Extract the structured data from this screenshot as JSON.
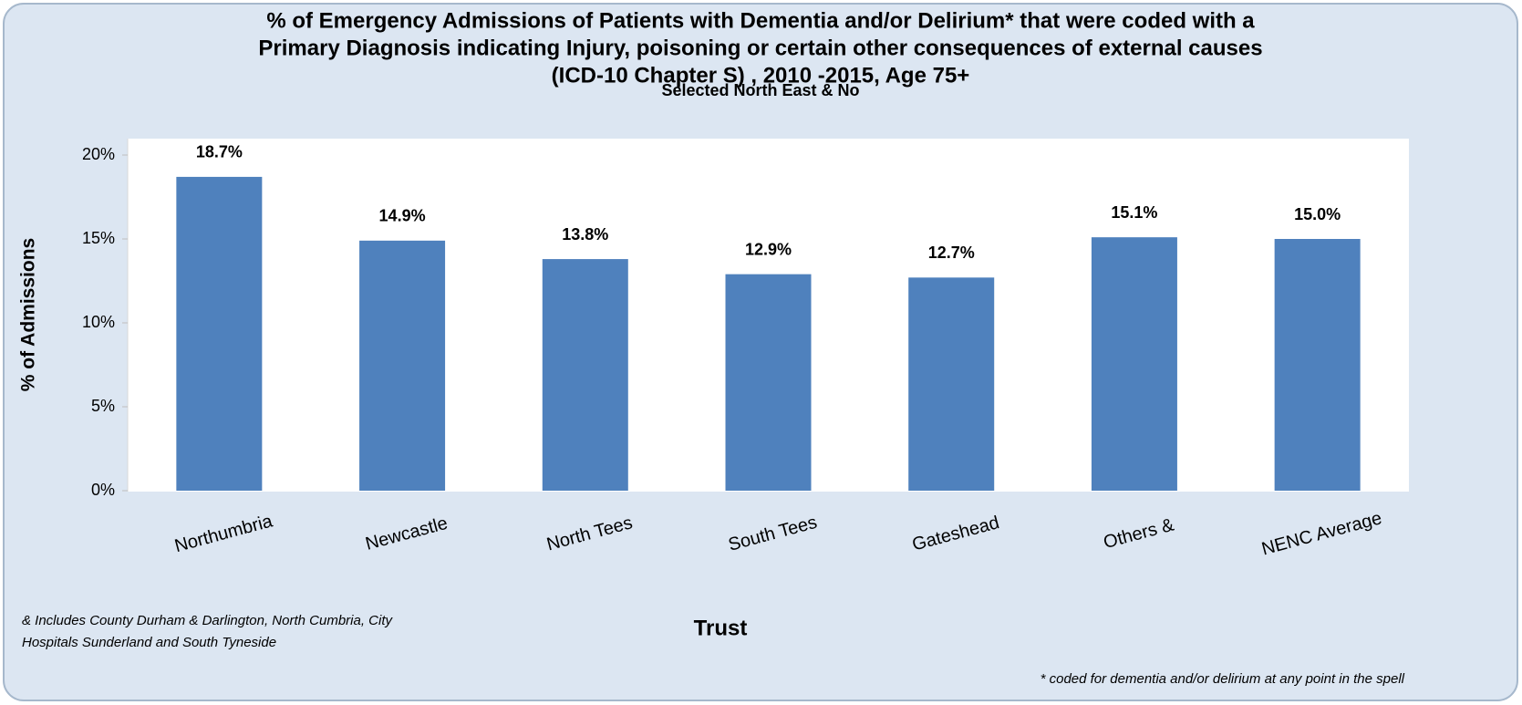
{
  "chart_data": {
    "type": "bar",
    "title": [
      "% of Emergency Admissions of Patients with Dementia and/or Delirium* that were coded with a",
      "Primary Diagnosis indicating Injury, poisoning or certain other consequences of external causes",
      "(ICD-10 Chapter S) , 2010 -2015, Age 75+"
    ],
    "subtitle": "Selected North East & No",
    "x_label": "Trust",
    "y_label": "% of Admissions",
    "categories": [
      "Northumbria",
      "Newcastle",
      "North Tees",
      "South Tees",
      "Gateshead",
      "Others  &",
      "NENC Average"
    ],
    "values": [
      18.7,
      14.9,
      13.8,
      12.9,
      12.7,
      15.1,
      15.0
    ],
    "value_labels": [
      "18.7%",
      "14.9%",
      "13.8%",
      "12.9%",
      "12.7%",
      "15.1%",
      "15.0%"
    ],
    "color": "#4f81bd",
    "ylim": [
      0,
      20
    ],
    "yticks": [
      {
        "value": 0,
        "label": "0%"
      },
      {
        "value": 5,
        "label": "5%"
      },
      {
        "value": 10,
        "label": "10%"
      },
      {
        "value": 15,
        "label": "15%"
      },
      {
        "value": 20,
        "label": "20%"
      }
    ],
    "grid": false,
    "footnote_left": [
      "& Includes County Durham & Darlington, North Cumbria, City",
      "Hospitals Sunderland and South Tyneside"
    ],
    "footnote_right": "* coded for dementia and/or delirium at any point in the spell"
  }
}
